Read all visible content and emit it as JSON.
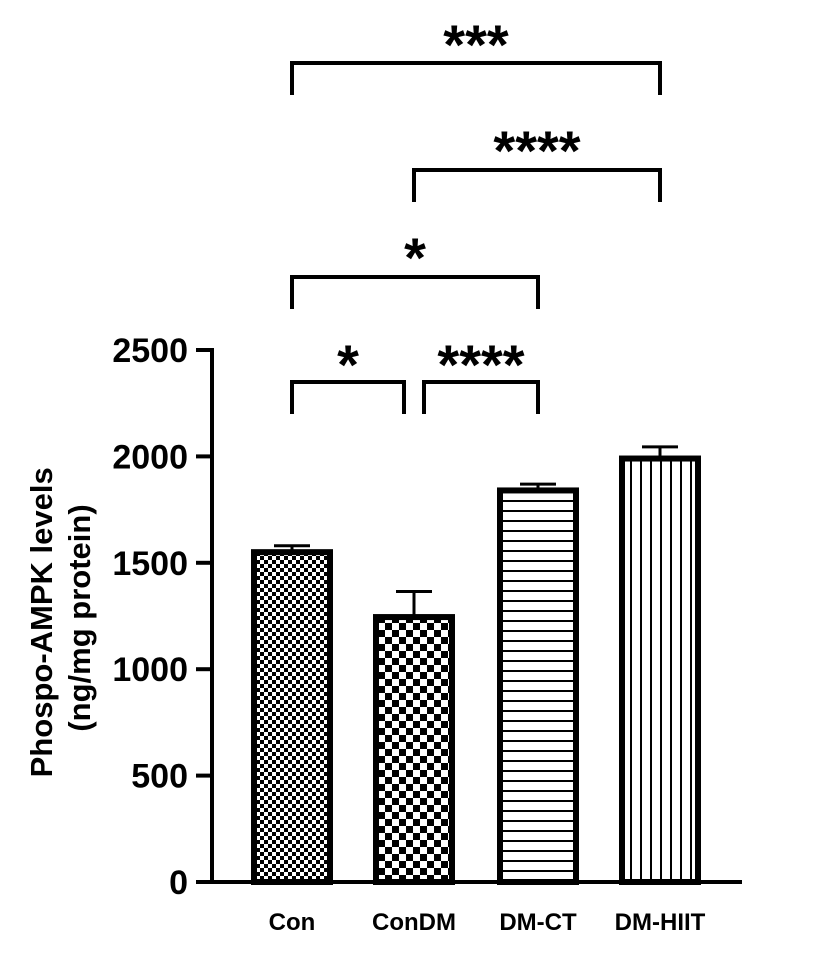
{
  "chart_data": {
    "type": "bar",
    "ylabel_lines": [
      "Phospo-AMPK levels",
      "(ng/mg protein)"
    ],
    "categories": [
      "Con",
      "ConDM",
      "DM-CT",
      "DM-HIIT"
    ],
    "values": [
      1550,
      1245,
      1840,
      1990
    ],
    "errors": [
      30,
      120,
      30,
      55
    ],
    "patterns": [
      "fine-checker",
      "checker",
      "horizontal-lines",
      "vertical-lines"
    ],
    "ylim": [
      0,
      2500
    ],
    "yticks": [
      0,
      500,
      1000,
      1500,
      2000,
      2500
    ],
    "significance": [
      {
        "from": "Con",
        "to": "ConDM",
        "label": "*"
      },
      {
        "from": "ConDM",
        "to": "DM-CT",
        "label": "****"
      },
      {
        "from": "Con",
        "to": "DM-CT",
        "label": "*"
      },
      {
        "from": "ConDM",
        "to": "DM-HIIT",
        "label": "****"
      },
      {
        "from": "Con",
        "to": "DM-HIIT",
        "label": "***"
      }
    ]
  }
}
